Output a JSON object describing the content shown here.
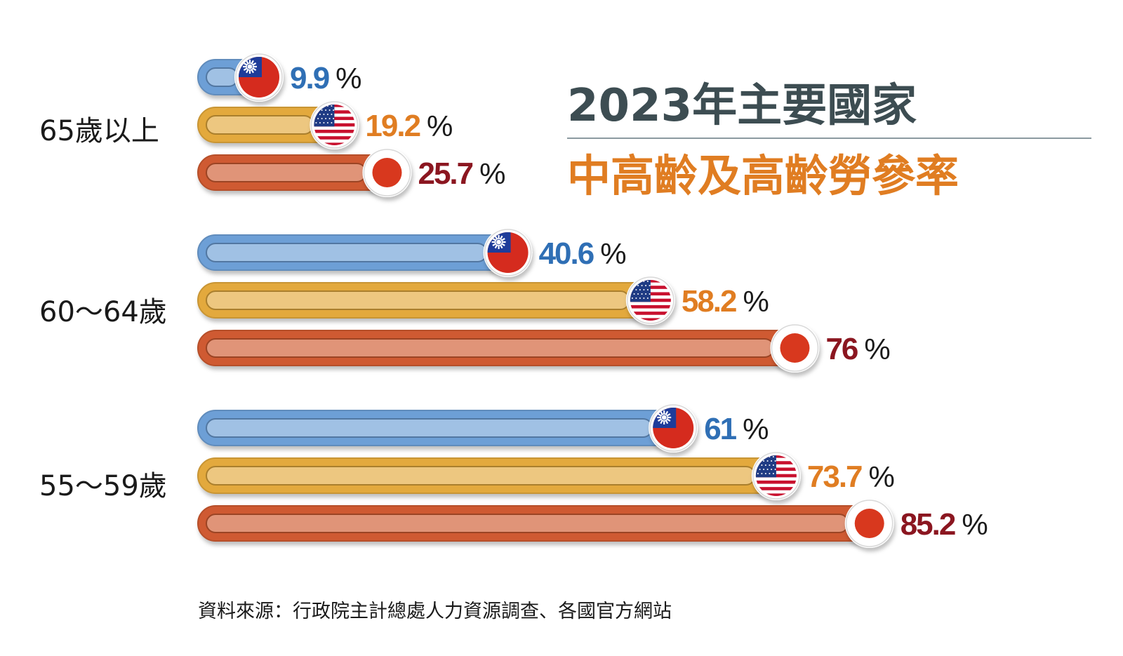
{
  "title": {
    "line1": "2023年主要國家",
    "line2": "中高齡及高齡勞參率"
  },
  "source": "資料來源：行政院主計總處人力資源調查、各國官方網站",
  "colors": {
    "title_dark": "#3d4d52",
    "title_accent": "#e07d22",
    "divider": "#8c9aa0"
  },
  "chart_data": {
    "type": "bar",
    "orientation": "horizontal",
    "unit": "%",
    "categories": [
      "65歲以上",
      "60～64歲",
      "55～59歲"
    ],
    "series": [
      {
        "country": "taiwan",
        "values": [
          9.9,
          40.6,
          61
        ],
        "labels": [
          "9.9",
          "40.6",
          "61"
        ],
        "bar_color": "#6d9fd6",
        "value_color": "#2f6fb5",
        "flag_icon": "taiwan-flag-icon"
      },
      {
        "country": "usa",
        "values": [
          19.2,
          58.2,
          73.7
        ],
        "labels": [
          "19.2",
          "58.2",
          "73.7"
        ],
        "bar_color": "#e3a93c",
        "value_color": "#e07d22",
        "flag_icon": "usa-flag-icon"
      },
      {
        "country": "japan",
        "values": [
          25.7,
          76,
          85.2
        ],
        "labels": [
          "25.7",
          "76",
          "85.2"
        ],
        "bar_color": "#cf5a30",
        "value_color": "#8b1620",
        "flag_icon": "japan-flag-icon"
      }
    ]
  }
}
